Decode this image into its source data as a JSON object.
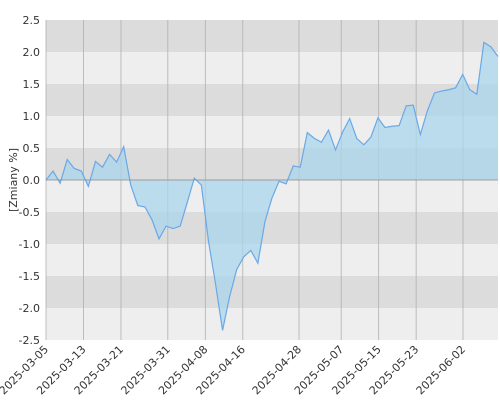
{
  "chart_data": {
    "type": "area",
    "title": "",
    "xlabel": "",
    "ylabel": "[Zmiany %]",
    "ylim": [
      -2.5,
      2.5
    ],
    "y_ticks": [
      "2.5",
      "2.0",
      "1.5",
      "1.0",
      "0.5",
      "0.0",
      "-0.5",
      "-1.0",
      "-1.5",
      "-2.0",
      "-2.5"
    ],
    "x_ticks": [
      {
        "label": "2025-03-05",
        "date": "2025-03-05"
      },
      {
        "label": "2025-03-13",
        "date": "2025-03-13"
      },
      {
        "label": "2025-03-21",
        "date": "2025-03-21"
      },
      {
        "label": "2025-03-31",
        "date": "2025-03-31"
      },
      {
        "label": "2025-04-08",
        "date": "2025-04-08"
      },
      {
        "label": "2025-04-16",
        "date": "2025-04-16"
      },
      {
        "label": "2025-04-28",
        "date": "2025-04-28"
      },
      {
        "label": "2025-05-07",
        "date": "2025-05-07"
      },
      {
        "label": "2025-05-15",
        "date": "2025-05-15"
      },
      {
        "label": "2025-05-23",
        "date": "2025-05-23"
      },
      {
        "label": "2025-06-02",
        "date": "2025-06-02"
      }
    ],
    "grid": "horizontal-bands-and-vertical-lines",
    "colors": {
      "line": "#6aa8e6",
      "fill": "#a9d5ec",
      "band_dark": "#dcdcdc",
      "band_light": "#eeeeee",
      "grid_line": "#b0b0b0",
      "zero_line": "#888888"
    },
    "series": [
      {
        "values": [
          0.0,
          0.14,
          -0.05,
          0.32,
          0.18,
          0.14,
          -0.1,
          0.29,
          0.2,
          0.4,
          0.28,
          0.52,
          -0.08,
          -0.4,
          -0.42,
          -0.62,
          -0.92,
          -0.72,
          -0.76,
          -0.72,
          -0.35,
          0.03,
          -0.08,
          -0.95,
          -1.62,
          -2.35,
          -1.82,
          -1.4,
          -1.2,
          -1.1,
          -1.3,
          -0.65,
          -0.28,
          -0.02,
          -0.06,
          0.22,
          0.2,
          0.74,
          0.65,
          0.59,
          0.78,
          0.47,
          0.75,
          0.96,
          0.65,
          0.55,
          0.67,
          0.97,
          0.82,
          0.84,
          0.85,
          1.16,
          1.17,
          0.71,
          1.08,
          1.36,
          1.39,
          1.41,
          1.44,
          1.65,
          1.41,
          1.34,
          2.15,
          2.08,
          1.93
        ]
      }
    ]
  }
}
